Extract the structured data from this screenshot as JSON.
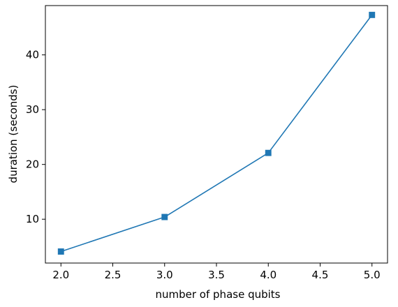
{
  "chart_data": {
    "type": "line",
    "title": "",
    "xlabel": "number of phase qubits",
    "ylabel": "duration (seconds)",
    "xlim": [
      1.85,
      5.15
    ],
    "ylim": [
      2.0,
      49.0
    ],
    "xticks": [
      2.0,
      2.5,
      3.0,
      3.5,
      4.0,
      4.5,
      5.0
    ],
    "xtick_labels": [
      "2.0",
      "2.5",
      "3.0",
      "3.5",
      "4.0",
      "4.5",
      "5.0"
    ],
    "yticks": [
      10,
      20,
      30,
      40
    ],
    "ytick_labels": [
      "10",
      "20",
      "30",
      "40"
    ],
    "grid": false,
    "legend": "none",
    "series": [
      {
        "color": "#1f77b4",
        "marker": "square",
        "x": [
          2.0,
          3.0,
          4.0,
          5.0
        ],
        "y": [
          4.1,
          10.4,
          22.1,
          47.3
        ]
      }
    ]
  }
}
